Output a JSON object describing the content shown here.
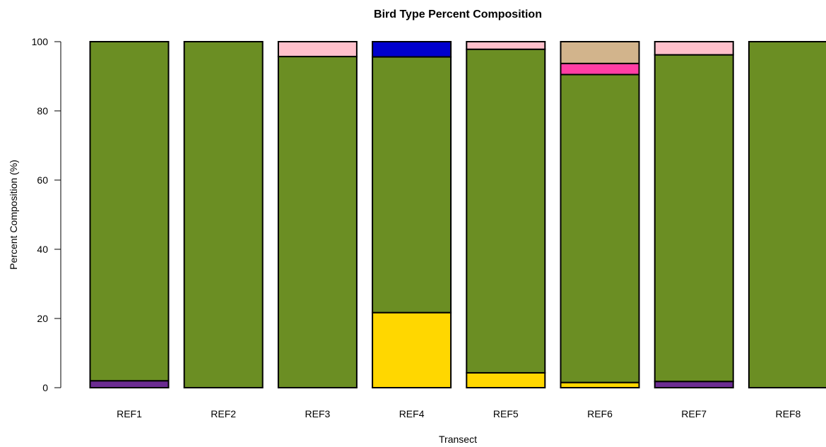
{
  "chart_data": {
    "type": "bar",
    "stacked": true,
    "title": "Bird Type Percent Composition",
    "xlabel": "Transect",
    "ylabel": "Percent Composition (%)",
    "ylim": [
      0,
      100
    ],
    "yticks": [
      0,
      20,
      40,
      60,
      80,
      100
    ],
    "categories": [
      "REF1",
      "REF2",
      "REF3",
      "REF4",
      "REF5",
      "REF6",
      "REF7",
      "REF8"
    ],
    "series": [
      {
        "color": "#6B2C91",
        "values": [
          2.0,
          0,
          0,
          0,
          0,
          0,
          1.8,
          0
        ]
      },
      {
        "color": "#FFD700",
        "values": [
          0,
          0,
          0,
          21.7,
          4.3,
          1.5,
          0,
          0
        ]
      },
      {
        "color": "#6B8E23",
        "values": [
          98.0,
          100,
          95.7,
          73.9,
          93.5,
          89.0,
          94.4,
          100
        ]
      },
      {
        "color": "#0000CD",
        "values": [
          0,
          0,
          0,
          4.4,
          0,
          0,
          0,
          0
        ]
      },
      {
        "color": "#FF3EA5",
        "values": [
          0,
          0,
          0,
          0,
          0,
          3.2,
          0,
          0
        ]
      },
      {
        "color": "#D2B48C",
        "values": [
          0,
          0,
          0,
          0,
          0,
          6.3,
          0,
          0
        ]
      },
      {
        "color": "#FFC0CB",
        "values": [
          0,
          0,
          4.3,
          0,
          2.2,
          0,
          3.8,
          0
        ]
      }
    ],
    "grid": false,
    "legend": "none"
  }
}
